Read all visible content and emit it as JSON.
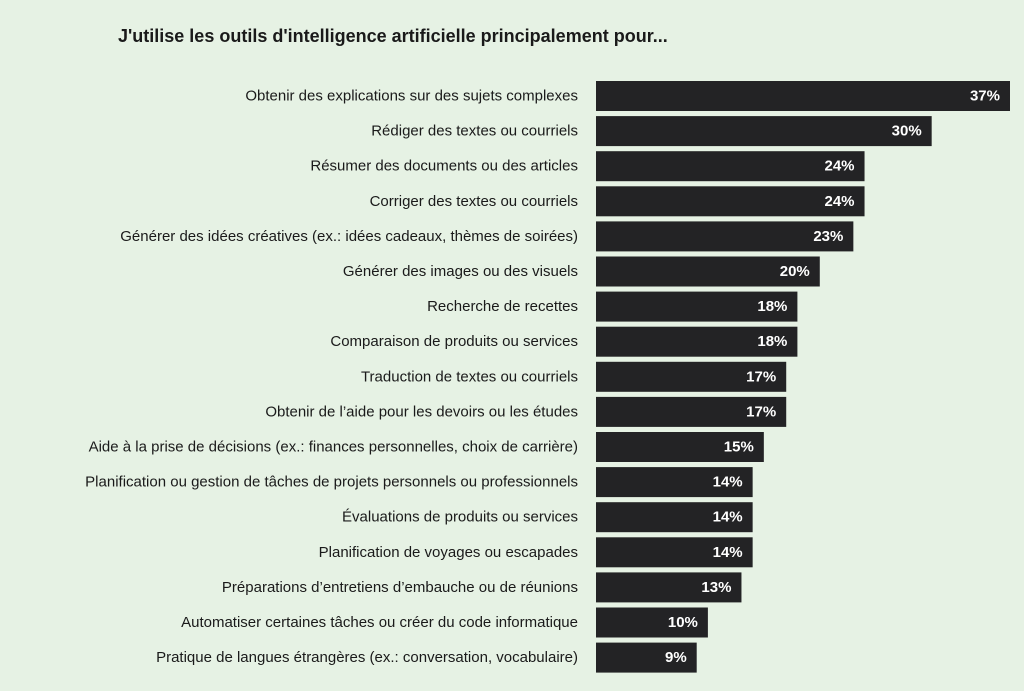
{
  "colors": {
    "background": "#e6f2e4",
    "bar": "#232325",
    "bar_label": "#ffffff",
    "category_label": "#1a1a1a"
  },
  "chart_data": {
    "type": "bar",
    "orientation": "horizontal",
    "title": "J'utilise les outils d'intelligence artificielle principalement pour...",
    "xlabel": "",
    "ylabel": "",
    "value_suffix": "%",
    "xlim": [
      0,
      37
    ],
    "grid": false,
    "legend": "none",
    "categories": [
      "Obtenir des explications sur des sujets complexes",
      "Rédiger des textes ou courriels",
      "Résumer des documents ou des articles",
      "Corriger des textes ou courriels",
      "Générer des idées créatives (ex.: idées cadeaux, thèmes de soirées)",
      "Générer des images ou des visuels",
      "Recherche de recettes",
      "Comparaison de produits ou services",
      "Traduction de textes ou courriels",
      "Obtenir de l’aide pour les devoirs ou les études",
      "Aide à la prise de décisions (ex.: finances personnelles, choix de carrière)",
      "Planification ou gestion de tâches de projets personnels ou professionnels",
      "Évaluations de produits ou services",
      "Planification de voyages ou escapades",
      "Préparations d’entretiens d’embauche ou de réunions",
      "Automatiser certaines tâches ou créer du code informatique",
      "Pratique de langues étrangères (ex.: conversation, vocabulaire)"
    ],
    "values": [
      37,
      30,
      24,
      24,
      23,
      20,
      18,
      18,
      17,
      17,
      15,
      14,
      14,
      14,
      13,
      10,
      9
    ],
    "data_labels": [
      "37%",
      "30%",
      "24%",
      "24%",
      "23%",
      "20%",
      "18%",
      "18%",
      "17%",
      "17%",
      "15%",
      "14%",
      "14%",
      "14%",
      "13%",
      "10%",
      "9%"
    ]
  }
}
